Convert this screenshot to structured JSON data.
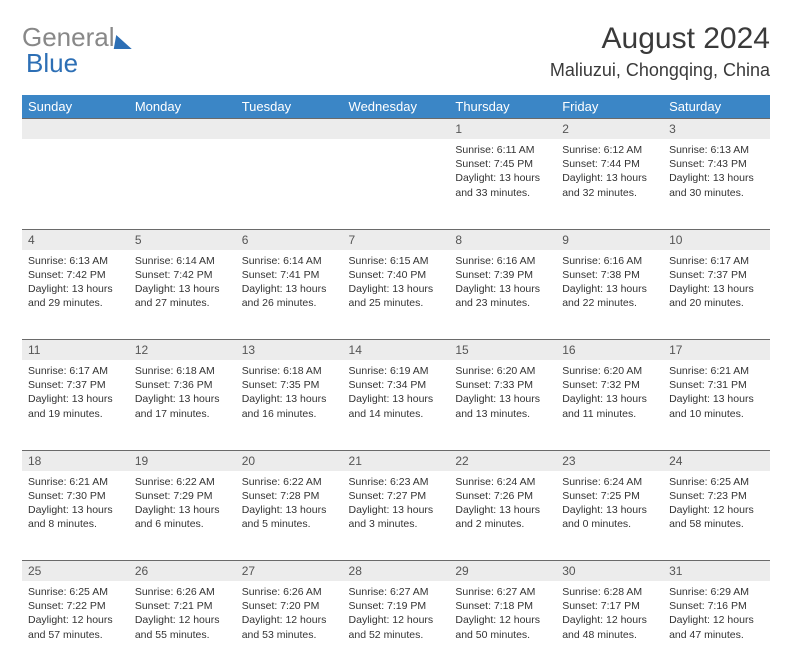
{
  "brand": {
    "part1": "General",
    "part2": "Blue"
  },
  "title": "August 2024",
  "location": "Maliuzui, Chongqing, China",
  "colors": {
    "header_bg": "#3b86c6",
    "header_text": "#ffffff",
    "daynum_bg": "#ececec",
    "border": "#6a6a6a",
    "logo_gray": "#888888",
    "logo_blue": "#2d6fb5"
  },
  "weekdays": [
    "Sunday",
    "Monday",
    "Tuesday",
    "Wednesday",
    "Thursday",
    "Friday",
    "Saturday"
  ],
  "weeks": [
    [
      null,
      null,
      null,
      null,
      {
        "d": "1",
        "sr": "6:11 AM",
        "ss": "7:45 PM",
        "dl": "13 hours and 33 minutes."
      },
      {
        "d": "2",
        "sr": "6:12 AM",
        "ss": "7:44 PM",
        "dl": "13 hours and 32 minutes."
      },
      {
        "d": "3",
        "sr": "6:13 AM",
        "ss": "7:43 PM",
        "dl": "13 hours and 30 minutes."
      }
    ],
    [
      {
        "d": "4",
        "sr": "6:13 AM",
        "ss": "7:42 PM",
        "dl": "13 hours and 29 minutes."
      },
      {
        "d": "5",
        "sr": "6:14 AM",
        "ss": "7:42 PM",
        "dl": "13 hours and 27 minutes."
      },
      {
        "d": "6",
        "sr": "6:14 AM",
        "ss": "7:41 PM",
        "dl": "13 hours and 26 minutes."
      },
      {
        "d": "7",
        "sr": "6:15 AM",
        "ss": "7:40 PM",
        "dl": "13 hours and 25 minutes."
      },
      {
        "d": "8",
        "sr": "6:16 AM",
        "ss": "7:39 PM",
        "dl": "13 hours and 23 minutes."
      },
      {
        "d": "9",
        "sr": "6:16 AM",
        "ss": "7:38 PM",
        "dl": "13 hours and 22 minutes."
      },
      {
        "d": "10",
        "sr": "6:17 AM",
        "ss": "7:37 PM",
        "dl": "13 hours and 20 minutes."
      }
    ],
    [
      {
        "d": "11",
        "sr": "6:17 AM",
        "ss": "7:37 PM",
        "dl": "13 hours and 19 minutes."
      },
      {
        "d": "12",
        "sr": "6:18 AM",
        "ss": "7:36 PM",
        "dl": "13 hours and 17 minutes."
      },
      {
        "d": "13",
        "sr": "6:18 AM",
        "ss": "7:35 PM",
        "dl": "13 hours and 16 minutes."
      },
      {
        "d": "14",
        "sr": "6:19 AM",
        "ss": "7:34 PM",
        "dl": "13 hours and 14 minutes."
      },
      {
        "d": "15",
        "sr": "6:20 AM",
        "ss": "7:33 PM",
        "dl": "13 hours and 13 minutes."
      },
      {
        "d": "16",
        "sr": "6:20 AM",
        "ss": "7:32 PM",
        "dl": "13 hours and 11 minutes."
      },
      {
        "d": "17",
        "sr": "6:21 AM",
        "ss": "7:31 PM",
        "dl": "13 hours and 10 minutes."
      }
    ],
    [
      {
        "d": "18",
        "sr": "6:21 AM",
        "ss": "7:30 PM",
        "dl": "13 hours and 8 minutes."
      },
      {
        "d": "19",
        "sr": "6:22 AM",
        "ss": "7:29 PM",
        "dl": "13 hours and 6 minutes."
      },
      {
        "d": "20",
        "sr": "6:22 AM",
        "ss": "7:28 PM",
        "dl": "13 hours and 5 minutes."
      },
      {
        "d": "21",
        "sr": "6:23 AM",
        "ss": "7:27 PM",
        "dl": "13 hours and 3 minutes."
      },
      {
        "d": "22",
        "sr": "6:24 AM",
        "ss": "7:26 PM",
        "dl": "13 hours and 2 minutes."
      },
      {
        "d": "23",
        "sr": "6:24 AM",
        "ss": "7:25 PM",
        "dl": "13 hours and 0 minutes."
      },
      {
        "d": "24",
        "sr": "6:25 AM",
        "ss": "7:23 PM",
        "dl": "12 hours and 58 minutes."
      }
    ],
    [
      {
        "d": "25",
        "sr": "6:25 AM",
        "ss": "7:22 PM",
        "dl": "12 hours and 57 minutes."
      },
      {
        "d": "26",
        "sr": "6:26 AM",
        "ss": "7:21 PM",
        "dl": "12 hours and 55 minutes."
      },
      {
        "d": "27",
        "sr": "6:26 AM",
        "ss": "7:20 PM",
        "dl": "12 hours and 53 minutes."
      },
      {
        "d": "28",
        "sr": "6:27 AM",
        "ss": "7:19 PM",
        "dl": "12 hours and 52 minutes."
      },
      {
        "d": "29",
        "sr": "6:27 AM",
        "ss": "7:18 PM",
        "dl": "12 hours and 50 minutes."
      },
      {
        "d": "30",
        "sr": "6:28 AM",
        "ss": "7:17 PM",
        "dl": "12 hours and 48 minutes."
      },
      {
        "d": "31",
        "sr": "6:29 AM",
        "ss": "7:16 PM",
        "dl": "12 hours and 47 minutes."
      }
    ]
  ],
  "labels": {
    "sunrise": "Sunrise:",
    "sunset": "Sunset:",
    "daylight": "Daylight:"
  }
}
